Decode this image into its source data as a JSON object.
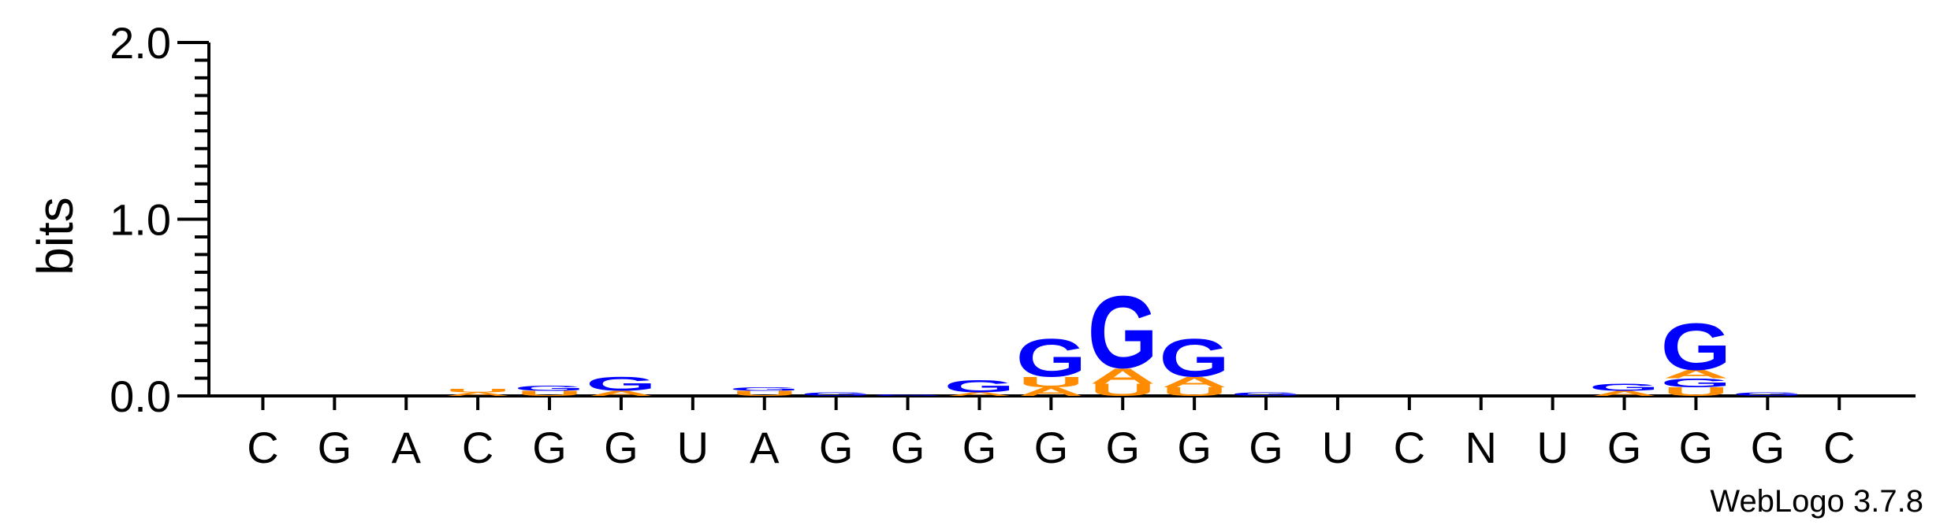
{
  "chart_data": {
    "type": "sequence_logo",
    "title": "",
    "ylabel": "bits",
    "ylim": [
      0,
      2.0
    ],
    "yticks": [
      "0.0",
      "1.0",
      "2.0"
    ],
    "positions": [
      "C",
      "G",
      "A",
      "C",
      "G",
      "G",
      "U",
      "A",
      "G",
      "G",
      "G",
      "G",
      "G",
      "G",
      "G",
      "U",
      "C",
      "N",
      "U",
      "G",
      "G",
      "G",
      "C"
    ],
    "colors": {
      "G": "#0000ff",
      "A": "#ff8c00",
      "U": "#ff8c00",
      "C": "#0000ff"
    },
    "stacks": [
      [],
      [],
      [],
      [
        {
          "letter": "A",
          "bits": 0.02
        },
        {
          "letter": "U",
          "bits": 0.02
        }
      ],
      [
        {
          "letter": "U",
          "bits": 0.03
        },
        {
          "letter": "G",
          "bits": 0.03
        }
      ],
      [
        {
          "letter": "A",
          "bits": 0.03
        },
        {
          "letter": "G",
          "bits": 0.08
        }
      ],
      [],
      [
        {
          "letter": "U",
          "bits": 0.03
        },
        {
          "letter": "G",
          "bits": 0.02
        }
      ],
      [
        {
          "letter": "G",
          "bits": 0.02
        }
      ],
      [
        {
          "letter": "G",
          "bits": 0.01
        }
      ],
      [
        {
          "letter": "A",
          "bits": 0.02
        },
        {
          "letter": "G",
          "bits": 0.07
        }
      ],
      [
        {
          "letter": "A",
          "bits": 0.05
        },
        {
          "letter": "U",
          "bits": 0.06
        },
        {
          "letter": "G",
          "bits": 0.22
        }
      ],
      [
        {
          "letter": "U",
          "bits": 0.07
        },
        {
          "letter": "A",
          "bits": 0.09
        },
        {
          "letter": "G",
          "bits": 0.42
        }
      ],
      [
        {
          "letter": "U",
          "bits": 0.05
        },
        {
          "letter": "A",
          "bits": 0.06
        },
        {
          "letter": "G",
          "bits": 0.22
        }
      ],
      [
        {
          "letter": "G",
          "bits": 0.02
        }
      ],
      [],
      [],
      [],
      [],
      [
        {
          "letter": "A",
          "bits": 0.03
        },
        {
          "letter": "G",
          "bits": 0.04
        }
      ],
      [
        {
          "letter": "U",
          "bits": 0.05
        },
        {
          "letter": "G",
          "bits": 0.05
        },
        {
          "letter": "A",
          "bits": 0.05
        },
        {
          "letter": "G",
          "bits": 0.27
        }
      ],
      [
        {
          "letter": "G",
          "bits": 0.02
        }
      ],
      []
    ]
  },
  "credit": "WebLogo 3.7.8"
}
